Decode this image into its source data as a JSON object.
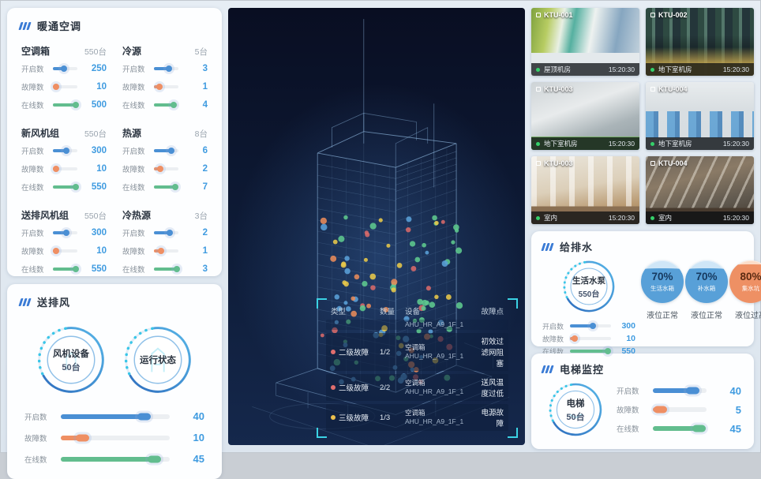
{
  "colors": {
    "accent_blue": "#3f9be0",
    "bar_blue": "#4a8fd4",
    "bar_orange": "#ef8f63",
    "bar_green": "#62bd8e",
    "live_green": "#35d06a",
    "bracket_cyan": "#3bd2e4",
    "fault_red": "#e06e6e",
    "fault_yellow": "#ecc04e"
  },
  "hvac_panel": {
    "title": "暖通空调",
    "groups": [
      {
        "name": "空调箱",
        "count": "550台",
        "rows": [
          {
            "label": "开启数",
            "value": "250",
            "pct": 46
          },
          {
            "label": "故障数",
            "value": "10",
            "pct": 12
          },
          {
            "label": "在线数",
            "value": "500",
            "pct": 92
          }
        ]
      },
      {
        "name": "冷源",
        "count": "5台",
        "rows": [
          {
            "label": "开启数",
            "value": "3",
            "pct": 60
          },
          {
            "label": "故障数",
            "value": "1",
            "pct": 22
          },
          {
            "label": "在线数",
            "value": "4",
            "pct": 82
          }
        ]
      },
      {
        "name": "新风机组",
        "count": "550台",
        "rows": [
          {
            "label": "开启数",
            "value": "300",
            "pct": 56
          },
          {
            "label": "故障数",
            "value": "10",
            "pct": 12
          },
          {
            "label": "在线数",
            "value": "550",
            "pct": 92
          }
        ]
      },
      {
        "name": "热源",
        "count": "8台",
        "rows": [
          {
            "label": "开启数",
            "value": "6",
            "pct": 72
          },
          {
            "label": "故障数",
            "value": "2",
            "pct": 25
          },
          {
            "label": "在线数",
            "value": "7",
            "pct": 88
          }
        ]
      },
      {
        "name": "送排风机组",
        "count": "550台",
        "rows": [
          {
            "label": "开启数",
            "value": "300",
            "pct": 56
          },
          {
            "label": "故障数",
            "value": "10",
            "pct": 12
          },
          {
            "label": "在线数",
            "value": "550",
            "pct": 92
          }
        ]
      },
      {
        "name": "冷热源",
        "count": "3台",
        "rows": [
          {
            "label": "开启数",
            "value": "2",
            "pct": 65
          },
          {
            "label": "故障数",
            "value": "1",
            "pct": 30
          },
          {
            "label": "在线数",
            "value": "3",
            "pct": 92
          }
        ]
      }
    ]
  },
  "fan_panel": {
    "title": "送排风",
    "gauges": [
      {
        "line1": "风机设备",
        "line2": "50台"
      },
      {
        "line1": "运行状态",
        "line2": ""
      }
    ],
    "rows": [
      {
        "label": "开启数",
        "value": "40",
        "pct": 78
      },
      {
        "label": "故障数",
        "value": "10",
        "pct": 22
      },
      {
        "label": "在线数",
        "value": "45",
        "pct": 88
      }
    ]
  },
  "cameras": [
    {
      "id": "KTU-001",
      "location": "屋顶机房",
      "time": "15:20:30"
    },
    {
      "id": "KTU-002",
      "location": "地下室机房",
      "time": "15:20:30"
    },
    {
      "id": "KTU-003",
      "location": "地下室机房",
      "time": "15:20:30"
    },
    {
      "id": "KTU-004",
      "location": "地下室机房",
      "time": "15:20:30"
    },
    {
      "id": "KTU-003",
      "location": "室内",
      "time": "15:20:30"
    },
    {
      "id": "KTU-004",
      "location": "室内",
      "time": "15:20:30"
    }
  ],
  "water_panel": {
    "title": "给排水",
    "gauge": {
      "line1": "生活水泵",
      "line2": "550台"
    },
    "tanks": [
      {
        "pct": "70%",
        "label": "生活水箱",
        "status": "液位正常",
        "theme": "blue",
        "fill": 70
      },
      {
        "pct": "70%",
        "label": "补水箱",
        "status": "液位正常",
        "theme": "blue",
        "fill": 70
      },
      {
        "pct": "80%",
        "label": "集水坑",
        "status": "液位过高",
        "theme": "orange",
        "fill": 80
      }
    ],
    "rows": [
      {
        "label": "开启数",
        "value": "300",
        "pct": 56
      },
      {
        "label": "故障数",
        "value": "10",
        "pct": 12
      },
      {
        "label": "在线数",
        "value": "550",
        "pct": 92
      }
    ]
  },
  "elevator_panel": {
    "title": "电梯监控",
    "gauge": {
      "line1": "电梯",
      "line2": "50台"
    },
    "rows": [
      {
        "label": "开启数",
        "value": "40",
        "pct": 78
      },
      {
        "label": "故障数",
        "value": "5",
        "pct": 18
      },
      {
        "label": "在线数",
        "value": "45",
        "pct": 90
      }
    ]
  },
  "center": {
    "table": {
      "headers": [
        "类型",
        "数量",
        "设备",
        "故障点"
      ],
      "partial_device": "AHU_HR_A9_1F_1",
      "rows": [
        {
          "dot": "#e06e6e",
          "type": "二级故障",
          "qty": "1/2",
          "device_line1": "空调箱",
          "device_line2": "AHU_HR_A9_1F_1",
          "fault": "初效过滤网阻塞"
        },
        {
          "dot": "#e06e6e",
          "type": "二级故障",
          "qty": "2/2",
          "device_line1": "空调箱",
          "device_line2": "AHU_HR_A9_1F_1",
          "fault": "送风温度过低"
        },
        {
          "dot": "#ecc04e",
          "type": "三级故障",
          "qty": "1/3",
          "device_line1": "空调箱",
          "device_line2": "AHU_HR_A9_1F_1",
          "fault": "电源故障"
        }
      ]
    }
  },
  "building_viz": {
    "dot_count": 110,
    "palette": [
      "#5ec98e",
      "#5aa0d8",
      "#e8c84a",
      "#e88b5a",
      "#d86a6a"
    ]
  }
}
